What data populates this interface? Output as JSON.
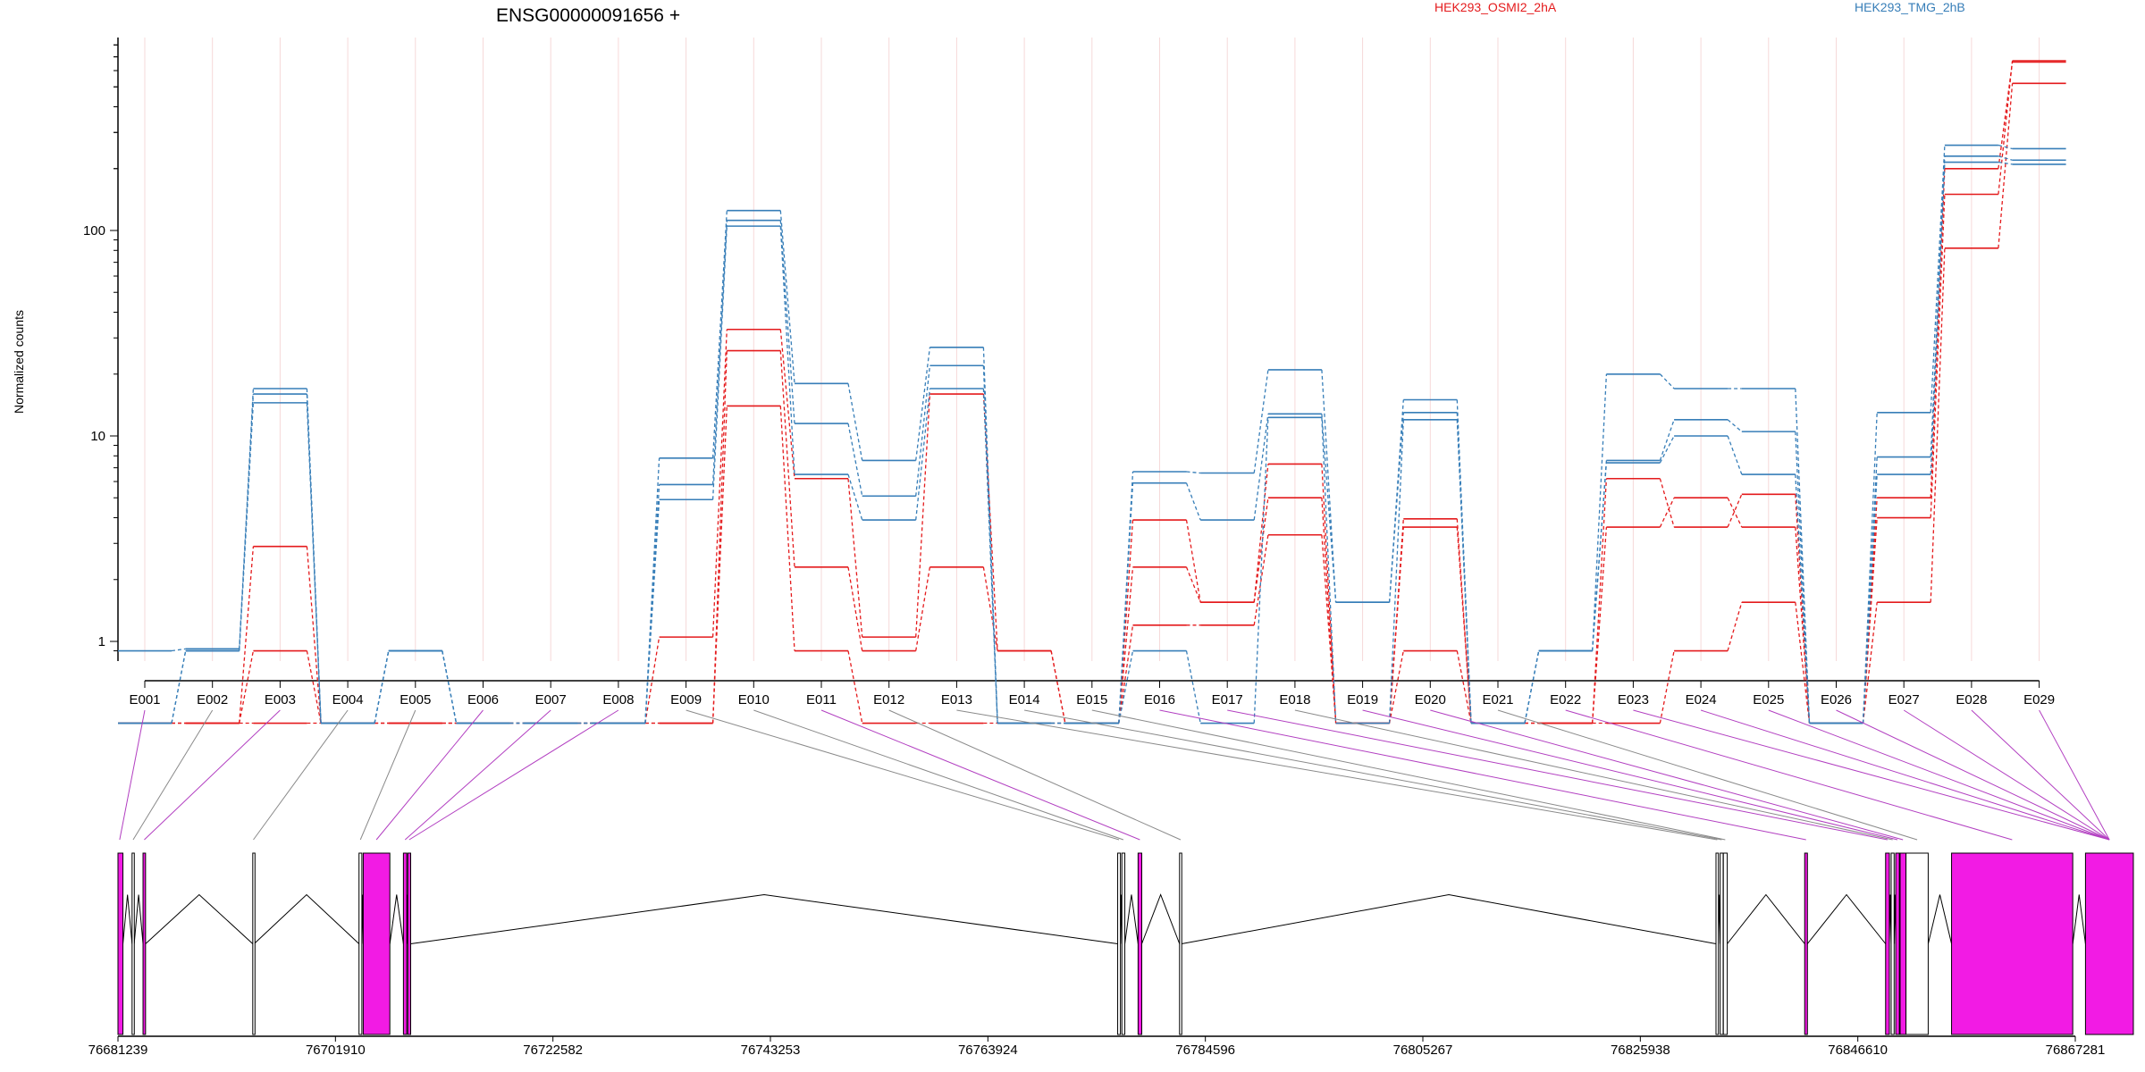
{
  "chart_data": {
    "type": "line",
    "title": "ENSG00000091656 +",
    "ylabel": "Normalized counts",
    "yscale": "log",
    "y_ticks": [
      "1",
      "10",
      "100"
    ],
    "legend": [
      {
        "name": "HEK293_OSMI2_2hA",
        "color": "#e41a1c"
      },
      {
        "name": "HEK293_TMG_2hB",
        "color": "#377eb8"
      }
    ],
    "categories": [
      "E001",
      "E002",
      "E003",
      "E004",
      "E005",
      "E006",
      "E007",
      "E008",
      "E009",
      "E010",
      "E011",
      "E012",
      "E013",
      "E014",
      "E015",
      "E016",
      "E017",
      "E018",
      "E019",
      "E020",
      "E021",
      "E022",
      "E023",
      "E024",
      "E025",
      "E026",
      "E027",
      "E028",
      "E029"
    ],
    "series": [
      {
        "group": "HEK293_OSMI2_2hA",
        "color": "#e41a1c",
        "values": [
          0.4,
          0.4,
          2.9,
          0.4,
          0.4,
          0.4,
          0.4,
          0.4,
          1.05,
          33,
          6.2,
          1.05,
          16,
          0.9,
          0.4,
          3.9,
          1.55,
          7.3,
          0.4,
          3.95,
          0.4,
          0.4,
          6.2,
          3.6,
          5.2,
          0.4,
          4.0,
          150,
          670
        ]
      },
      {
        "group": "HEK293_OSMI2_2hA",
        "color": "#e41a1c",
        "values": [
          0.4,
          0.4,
          0.9,
          0.4,
          0.4,
          0.4,
          0.4,
          0.4,
          0.4,
          26,
          2.3,
          0.9,
          2.3,
          0.9,
          0.4,
          2.3,
          1.55,
          5.0,
          0.4,
          3.6,
          0.4,
          0.4,
          3.6,
          5.0,
          3.6,
          0.4,
          5.0,
          200,
          660
        ]
      },
      {
        "group": "HEK293_OSMI2_2hA",
        "color": "#e41a1c",
        "values": [
          0.4,
          0.4,
          0.4,
          0.4,
          0.4,
          0.4,
          0.4,
          0.4,
          0.4,
          14,
          0.9,
          0.4,
          0.4,
          0.4,
          0.4,
          1.2,
          1.2,
          3.3,
          0.4,
          0.9,
          0.4,
          0.4,
          0.4,
          0.9,
          1.55,
          0.4,
          1.55,
          82,
          520
        ]
      },
      {
        "group": "HEK293_TMG_2hB",
        "color": "#377eb8",
        "values": [
          0.9,
          0.92,
          17,
          0.4,
          0.9,
          0.4,
          0.4,
          0.4,
          7.8,
          125,
          18,
          7.6,
          27,
          0.4,
          0.4,
          6.7,
          6.6,
          21,
          1.55,
          15,
          0.4,
          0.9,
          20,
          17,
          17,
          0.4,
          13,
          260,
          250
        ]
      },
      {
        "group": "HEK293_TMG_2hB",
        "color": "#377eb8",
        "values": [
          0.4,
          0.9,
          16,
          0.4,
          0.9,
          0.4,
          0.4,
          0.4,
          5.8,
          112,
          11.5,
          5.1,
          22,
          0.4,
          0.4,
          5.9,
          3.9,
          12.8,
          1.55,
          13,
          0.4,
          0.9,
          7.6,
          12,
          10.5,
          0.4,
          7.9,
          230,
          220
        ]
      },
      {
        "group": "HEK293_TMG_2hB",
        "color": "#377eb8",
        "values": [
          0.4,
          0.9,
          14.5,
          0.4,
          0.9,
          0.4,
          0.4,
          0.4,
          4.9,
          105,
          6.5,
          3.9,
          17,
          0.4,
          0.4,
          0.9,
          0.4,
          12.3,
          0.4,
          12,
          0.4,
          0.9,
          7.4,
          10,
          6.5,
          0.4,
          6.5,
          215,
          210
        ]
      }
    ],
    "gene_model": {
      "coordinate_ticks": [
        "76681239",
        "76701910",
        "76722582",
        "76743253",
        "76763924",
        "76784596",
        "76805267",
        "76825938",
        "76846610",
        "76867281"
      ],
      "exon_spans": [
        [
          76681239,
          76681710
        ],
        [
          76682580,
          76682780
        ],
        [
          76683620,
          76683860
        ],
        [
          76694050,
          76694180
        ],
        [
          76704150,
          76704420
        ],
        [
          76704550,
          76707080
        ],
        [
          76708370,
          76708690
        ],
        [
          76708780,
          76709060
        ],
        [
          76776260,
          76776520
        ],
        [
          76776660,
          76776940
        ],
        [
          76778200,
          76778550
        ],
        [
          76782140,
          76782340
        ],
        [
          76833130,
          76833360
        ],
        [
          76833530,
          76833810
        ],
        [
          76833830,
          76834200
        ],
        [
          76841560,
          76841820
        ],
        [
          76849250,
          76849610
        ],
        [
          76849780,
          76850060
        ],
        [
          76850210,
          76850560
        ],
        [
          76850630,
          76851190
        ],
        [
          76851190,
          76853300
        ],
        [
          76855520,
          76867040
        ],
        [
          76868250,
          76872800
        ]
      ],
      "exon_tested": [
        true,
        false,
        true,
        false,
        false,
        true,
        true,
        true,
        false,
        false,
        true,
        false,
        false,
        false,
        false,
        true,
        true,
        false,
        true,
        true,
        false,
        true,
        true
      ],
      "exon_anchors": [
        76681400,
        76682680,
        76683740,
        76694110,
        76704280,
        76705800,
        76708530,
        76708920,
        76776390,
        76776800,
        76778370,
        76782240,
        76833250,
        76833670,
        76834010,
        76841690,
        76849430,
        76849920,
        76850380,
        76850900,
        76852250,
        76861280,
        76870520
      ],
      "exon_colors": {
        "tested": "#f21be4",
        "untested": "#ffffff"
      },
      "bin_to_exon": [
        0,
        1,
        2,
        3,
        4,
        5,
        6,
        7,
        8,
        9,
        10,
        11,
        12,
        13,
        14,
        15,
        16,
        17,
        18,
        19,
        20,
        21,
        22,
        23,
        24,
        25,
        26,
        27,
        28
      ],
      "connector_map": [
        [
          0,
          0
        ],
        [
          1,
          1
        ],
        [
          2,
          2
        ],
        [
          3,
          3
        ],
        [
          4,
          4
        ],
        [
          5,
          5
        ],
        [
          6,
          6
        ],
        [
          7,
          7
        ],
        [
          8,
          8
        ],
        [
          9,
          9
        ],
        [
          10,
          10
        ],
        [
          11,
          11
        ],
        [
          12,
          12
        ],
        [
          13,
          13
        ],
        [
          14,
          14
        ],
        [
          15,
          15
        ],
        [
          16,
          16
        ],
        [
          17,
          17
        ],
        [
          18,
          17
        ],
        [
          19,
          18
        ],
        [
          20,
          19
        ],
        [
          21,
          20
        ],
        [
          22,
          21
        ],
        [
          23,
          22
        ]
      ]
    }
  }
}
